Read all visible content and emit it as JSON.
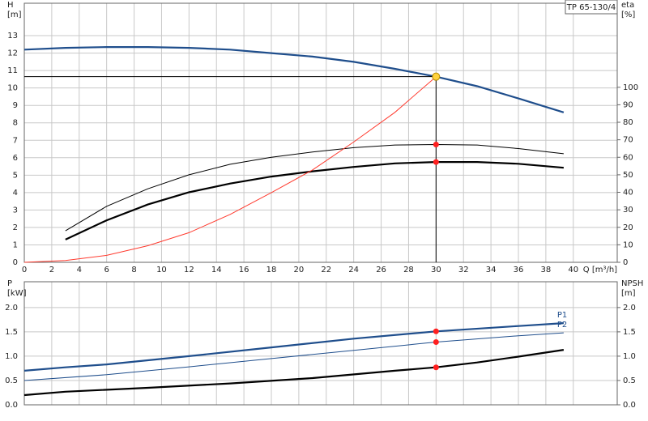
{
  "chart_data": [
    {
      "type": "line",
      "title": "TP 65-130/4",
      "xlabel": "Q [m³/h]",
      "ylabel": "H",
      "ylabel_unit": "[m]",
      "y2label": "eta",
      "y2label_unit": "[%]",
      "xlim": [
        0,
        43.2
      ],
      "xticks": [
        0,
        2,
        4,
        6,
        8,
        10,
        12,
        14,
        16,
        18,
        20,
        22,
        24,
        26,
        28,
        30,
        32,
        34,
        36,
        38,
        40
      ],
      "ylim": [
        0,
        14.86
      ],
      "yticks": [
        0,
        1,
        2,
        3,
        4,
        5,
        6,
        7,
        8,
        9,
        10,
        11,
        12,
        13
      ],
      "y2lim": [
        0,
        148
      ],
      "y2ticks": [
        0,
        10,
        20,
        30,
        40,
        50,
        60,
        70,
        80,
        90,
        100
      ],
      "grid": true,
      "series": [
        {
          "color": "#1f4e8c",
          "weight": "bold",
          "axis": "y",
          "x": [
            0,
            3,
            6,
            9,
            12,
            15,
            18,
            21,
            24,
            27,
            30,
            33,
            36,
            39.3
          ],
          "values": [
            12.2,
            12.3,
            12.35,
            12.35,
            12.3,
            12.2,
            12.0,
            11.8,
            11.5,
            11.1,
            10.65,
            10.1,
            9.4,
            8.6
          ]
        },
        {
          "color": "#000000",
          "weight": "thin",
          "axis": "y2",
          "x": [
            3,
            6,
            9,
            12,
            15,
            18,
            21,
            24,
            27,
            30,
            33,
            36,
            39.3
          ],
          "values": [
            18,
            32,
            42,
            50,
            56,
            60,
            63,
            65.5,
            67,
            67.3,
            67,
            65,
            62
          ]
        },
        {
          "color": "#000000",
          "weight": "bold",
          "axis": "y2",
          "x": [
            3,
            6,
            9,
            12,
            15,
            18,
            21,
            24,
            27,
            30,
            33,
            36,
            39.3
          ],
          "values": [
            13,
            24,
            33,
            40,
            45,
            49,
            52,
            54.5,
            56.5,
            57.3,
            57.3,
            56.3,
            54
          ]
        },
        {
          "color": "#ff3b2f",
          "weight": "thin",
          "axis": "y",
          "x": [
            0,
            3,
            6,
            9,
            12,
            15,
            18,
            21,
            24,
            27,
            30
          ],
          "values": [
            0,
            0.1,
            0.4,
            0.95,
            1.7,
            2.75,
            4.0,
            5.3,
            6.9,
            8.6,
            10.65
          ]
        }
      ],
      "markers": [
        {
          "x": 30,
          "y": 10.65,
          "axis": "y",
          "color": "#ffd23c",
          "guides": true
        },
        {
          "x": 30,
          "y": 67.3,
          "axis": "y2",
          "color": "#ff2020"
        },
        {
          "x": 30,
          "y": 57.3,
          "axis": "y2",
          "color": "#ff2020"
        }
      ]
    },
    {
      "type": "line",
      "ylabel": "P",
      "ylabel_unit": "[kW]",
      "y2label": "NPSH",
      "y2label_unit": "[m]",
      "xlim": [
        0,
        43.2
      ],
      "xticks": [
        0,
        2,
        4,
        6,
        8,
        10,
        12,
        14,
        16,
        18,
        20,
        22,
        24,
        26,
        28,
        30,
        32,
        34,
        36,
        38,
        40
      ],
      "ylim": [
        0,
        2.53
      ],
      "yticks": [
        {
          "value": 0,
          "label": "0.0"
        },
        {
          "value": 0.5,
          "label": "0.5"
        },
        {
          "value": 1,
          "label": "1.0"
        },
        {
          "value": 1.5,
          "label": "1.5"
        },
        {
          "value": 2,
          "label": "2.0"
        }
      ],
      "y2lim": [
        0,
        2.53
      ],
      "y2ticks": [
        {
          "value": 0,
          "label": "0.0"
        },
        {
          "value": 0.5,
          "label": "0.5"
        },
        {
          "value": 1,
          "label": "1.0"
        },
        {
          "value": 1.5,
          "label": "1.5"
        },
        {
          "value": 2,
          "label": "2.0"
        }
      ],
      "grid": true,
      "series": [
        {
          "name": "P1",
          "color": "#1f4e8c",
          "weight": "bold",
          "axis": "y",
          "x": [
            0,
            3,
            6,
            12,
            18,
            24,
            30,
            36,
            39.3
          ],
          "values": [
            0.7,
            0.77,
            0.83,
            1.0,
            1.18,
            1.36,
            1.51,
            1.62,
            1.68
          ]
        },
        {
          "name": "P2",
          "color": "#1f4e8c",
          "weight": "thin",
          "axis": "y",
          "x": [
            0,
            6,
            12,
            18,
            24,
            30,
            36,
            39.3
          ],
          "values": [
            0.5,
            0.62,
            0.78,
            0.95,
            1.12,
            1.29,
            1.42,
            1.48
          ]
        },
        {
          "color": "#000000",
          "weight": "bold",
          "axis": "y2",
          "x": [
            0,
            3,
            9,
            15,
            21,
            27,
            30,
            33,
            36,
            39.3
          ],
          "values": [
            0.2,
            0.27,
            0.35,
            0.44,
            0.55,
            0.7,
            0.77,
            0.87,
            0.99,
            1.13
          ]
        }
      ],
      "markers": [
        {
          "x": 30,
          "y": 1.51,
          "axis": "y",
          "color": "#ff2020"
        },
        {
          "x": 30,
          "y": 1.29,
          "axis": "y",
          "color": "#ff2020"
        },
        {
          "x": 30,
          "y": 0.77,
          "axis": "y2",
          "color": "#ff2020"
        }
      ]
    }
  ]
}
